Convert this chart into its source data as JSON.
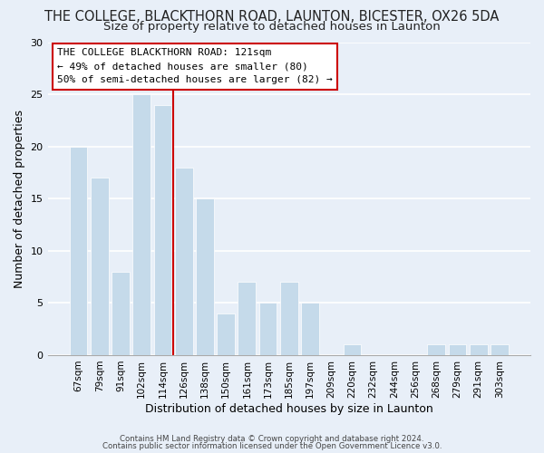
{
  "title": "THE COLLEGE, BLACKTHORN ROAD, LAUNTON, BICESTER, OX26 5DA",
  "subtitle": "Size of property relative to detached houses in Launton",
  "xlabel": "Distribution of detached houses by size in Launton",
  "ylabel": "Number of detached properties",
  "bar_color": "#c5daea",
  "bar_edge_color": "#ffffff",
  "categories": [
    "67sqm",
    "79sqm",
    "91sqm",
    "102sqm",
    "114sqm",
    "126sqm",
    "138sqm",
    "150sqm",
    "161sqm",
    "173sqm",
    "185sqm",
    "197sqm",
    "209sqm",
    "220sqm",
    "232sqm",
    "244sqm",
    "256sqm",
    "268sqm",
    "279sqm",
    "291sqm",
    "303sqm"
  ],
  "values": [
    20,
    17,
    8,
    25,
    24,
    18,
    15,
    4,
    7,
    5,
    7,
    5,
    0,
    1,
    0,
    0,
    0,
    1,
    1,
    1,
    1
  ],
  "ylim": [
    0,
    30
  ],
  "yticks": [
    0,
    5,
    10,
    15,
    20,
    25,
    30
  ],
  "vline_x": 4.5,
  "vline_color": "#cc0000",
  "annotation_title": "THE COLLEGE BLACKTHORN ROAD: 121sqm",
  "annotation_line1": "← 49% of detached houses are smaller (80)",
  "annotation_line2": "50% of semi-detached houses are larger (82) →",
  "footer1": "Contains HM Land Registry data © Crown copyright and database right 2024.",
  "footer2": "Contains public sector information licensed under the Open Government Licence v3.0.",
  "background_color": "#e8eff8",
  "grid_color": "#ffffff",
  "title_fontsize": 10.5,
  "subtitle_fontsize": 9.5,
  "annotation_border_color": "#cc0000"
}
